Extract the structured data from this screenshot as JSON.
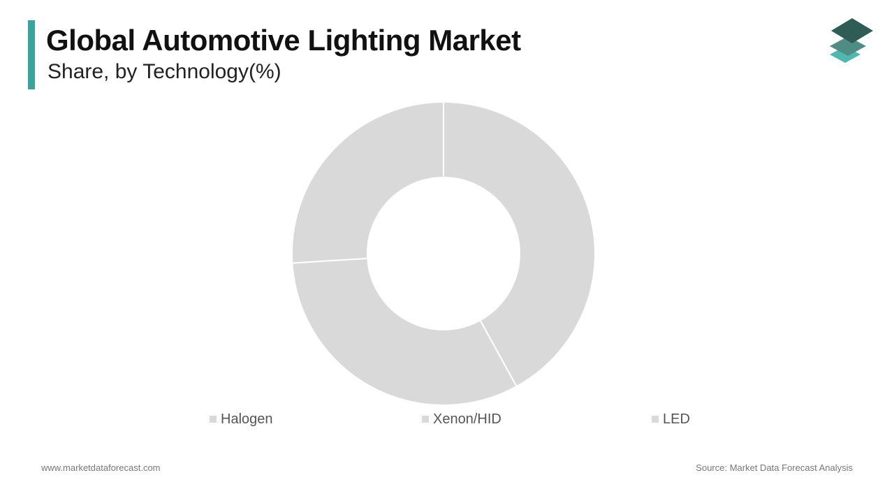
{
  "header": {
    "title": "Global Automotive Lighting Market",
    "subtitle": "Share, by Technology(%)"
  },
  "colors": {
    "accent": "#3aa39b",
    "slice": "#d9d9d9",
    "logo_dark": "#2f5d56",
    "logo_mid": "#4f8c84",
    "logo_light": "#4fb8ae"
  },
  "chart_data": {
    "type": "pie",
    "style": "donut",
    "title": "Global Automotive Lighting Market",
    "subtitle": "Share, by Technology(%)",
    "categories": [
      "Halogen",
      "Xenon/HID",
      "LED"
    ],
    "values": [
      42,
      32,
      26
    ],
    "unit": "%",
    "legend": "bottom"
  },
  "footer": {
    "website": "www.marketdataforecast.com",
    "source": "Source: Market Data Forecast Analysis"
  }
}
